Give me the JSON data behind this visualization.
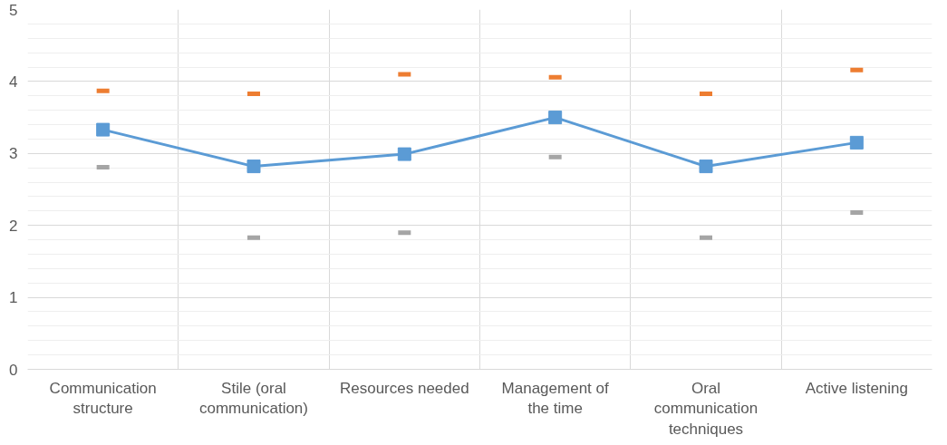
{
  "chart_data": {
    "type": "line",
    "categories": [
      "Communication structure",
      "Stile (oral communication)",
      "Resources needed",
      "Management of the time",
      "Oral communication techniques",
      "Active listening"
    ],
    "series": [
      {
        "type": "scatter",
        "color": "#a5a5a5",
        "values": [
          2.81,
          1.83,
          1.9,
          2.95,
          1.83,
          2.18
        ]
      },
      {
        "type": "scatter",
        "color": "#ed7d31",
        "values": [
          3.87,
          3.83,
          4.1,
          4.06,
          3.83,
          4.16
        ]
      },
      {
        "marker": "square",
        "color": "#5b9bd5",
        "values": [
          3.33,
          2.82,
          2.99,
          3.5,
          2.82,
          3.15
        ]
      }
    ],
    "ylim": [
      0,
      5
    ],
    "yticks": [
      0,
      1,
      2,
      3,
      4,
      5
    ],
    "grid": true
  }
}
